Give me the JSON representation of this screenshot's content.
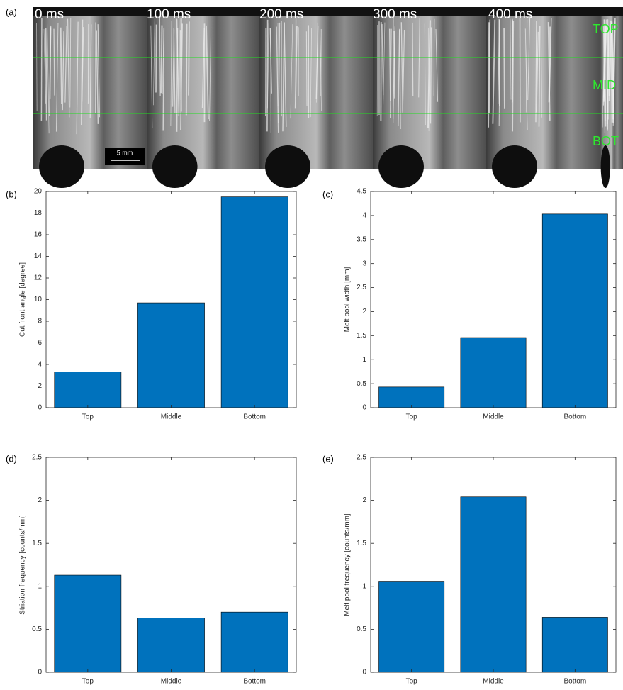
{
  "image_panel": {
    "panel_label": "(a)",
    "time_labels": [
      "0 ms",
      "100 ms",
      "200 ms",
      "300 ms",
      "400 ms"
    ],
    "region_labels": [
      "TOP",
      "MID",
      "BOT"
    ],
    "scale_bar": "5 mm"
  },
  "chart_data": [
    {
      "type": "bar",
      "panel_label": "(b)",
      "ylabel": "Cut front angle [degree]",
      "categories": [
        "Top",
        "Middle",
        "Bottom"
      ],
      "values": [
        3.3,
        9.7,
        19.5
      ],
      "color": "#0072bd",
      "ylim": [
        0,
        20
      ],
      "yticks": [
        0,
        2,
        4,
        6,
        8,
        10,
        12,
        14,
        16,
        18,
        20
      ]
    },
    {
      "type": "bar",
      "panel_label": "(c)",
      "ylabel": "Melt pool width [mm]",
      "categories": [
        "Top",
        "Middle",
        "Bottom"
      ],
      "values": [
        0.43,
        1.46,
        4.03
      ],
      "color": "#0072bd",
      "ylim": [
        0,
        4.5
      ],
      "yticks": [
        0,
        0.5,
        1,
        1.5,
        2,
        2.5,
        3,
        3.5,
        4,
        4.5
      ]
    },
    {
      "type": "bar",
      "panel_label": "(d)",
      "ylabel": "Striation frequency [counts/mm]",
      "categories": [
        "Top",
        "Middle",
        "Bottom"
      ],
      "values": [
        1.13,
        0.63,
        0.7
      ],
      "color": "#0072bd",
      "ylim": [
        0,
        2.5
      ],
      "yticks": [
        0,
        0.5,
        1,
        1.5,
        2,
        2.5
      ]
    },
    {
      "type": "bar",
      "panel_label": "(e)",
      "ylabel": "Melt pool frequency [counts/mm]",
      "categories": [
        "Top",
        "Middle",
        "Bottom"
      ],
      "values": [
        1.06,
        2.04,
        0.64
      ],
      "color": "#0072bd",
      "ylim": [
        0,
        2.5
      ],
      "yticks": [
        0,
        0.5,
        1,
        1.5,
        2,
        2.5
      ]
    }
  ]
}
